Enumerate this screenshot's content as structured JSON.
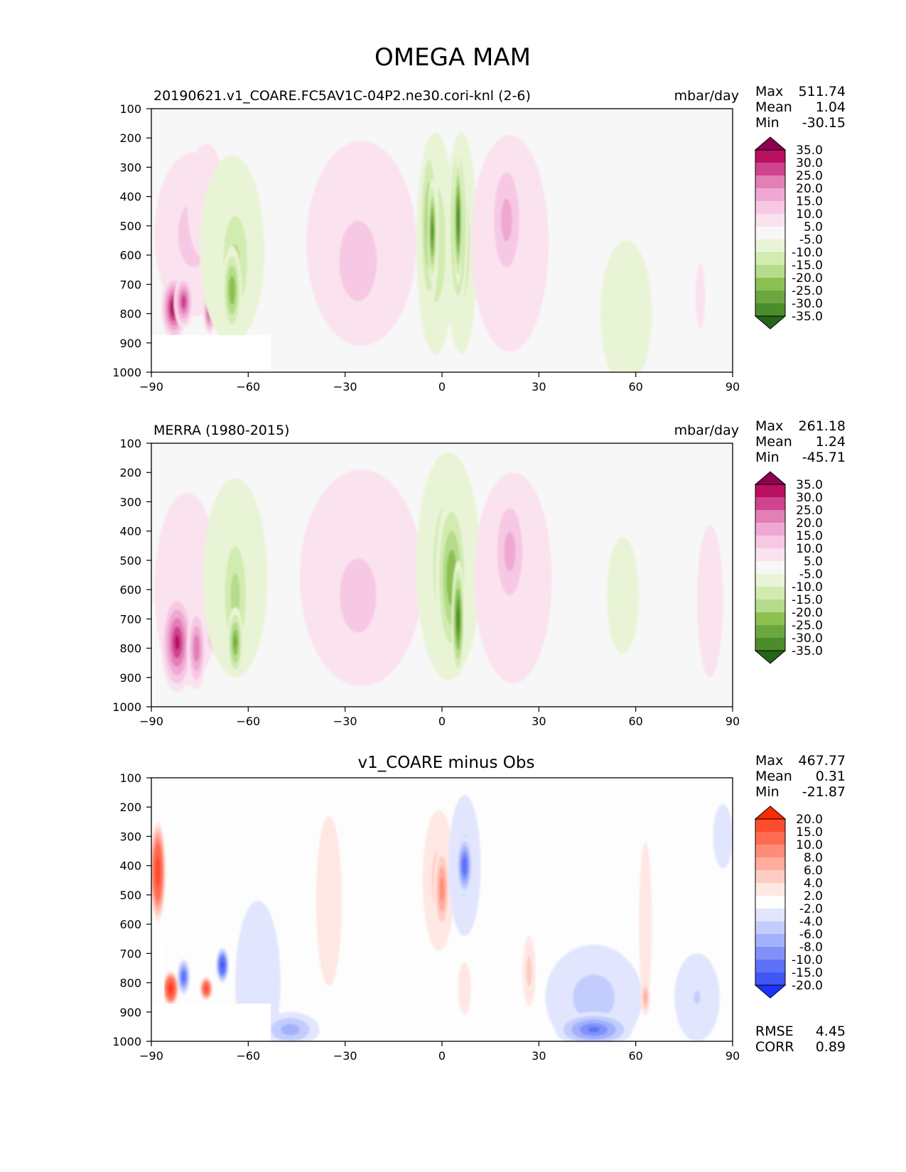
{
  "figure": {
    "title": "OMEGA MAM"
  },
  "chart_data": [
    {
      "type": "contour",
      "title": "20190621.v1_COARE.FC5AV1C-04P2.ne30.cori-knl (2-6)",
      "units": "mbar/day",
      "x_ticks": [
        "−90",
        "−60",
        "−30",
        "0",
        "30",
        "60",
        "90"
      ],
      "x_values": [
        -90,
        -60,
        -30,
        0,
        30,
        60,
        90
      ],
      "xlim": [
        -90,
        90
      ],
      "y_ticks": [
        "100",
        "200",
        "300",
        "400",
        "500",
        "600",
        "700",
        "800",
        "900",
        "1000"
      ],
      "y_values": [
        100,
        200,
        300,
        400,
        500,
        600,
        700,
        800,
        900,
        1000
      ],
      "ylim": [
        1000,
        100
      ],
      "stats": [
        {
          "label": "Max",
          "value": "511.74"
        },
        {
          "label": "Mean",
          "value": "1.04"
        },
        {
          "label": "Min",
          "value": "-30.15"
        }
      ],
      "colorbar": {
        "labels": [
          "35.0",
          "30.0",
          "25.0",
          "20.0",
          "15.0",
          "10.0",
          "5.0",
          "-5.0",
          "-10.0",
          "-15.0",
          "-20.0",
          "-25.0",
          "-30.0",
          "-35.0"
        ],
        "colors": [
          "#8e0152",
          "#b9105f",
          "#d0438f",
          "#e27fb5",
          "#efa8d2",
          "#f7c8e3",
          "#fae2ef",
          "#f7f7f7",
          "#e9f4d7",
          "#d2ebb0",
          "#b4dc8a",
          "#8cc151",
          "#6ba73e",
          "#4b8d2b",
          "#266419"
        ]
      },
      "blobs": [
        {
          "x": -77,
          "y": 530,
          "rx": 12,
          "ry": 280,
          "v": 12
        },
        {
          "x": -73,
          "y": 420,
          "rx": 6,
          "ry": 200,
          "v": 6
        },
        {
          "x": -83,
          "y": 780,
          "rx": 4,
          "ry": 110,
          "v": 34
        },
        {
          "x": -80,
          "y": 760,
          "rx": 3,
          "ry": 90,
          "v": 28
        },
        {
          "x": -72,
          "y": 790,
          "rx": 2,
          "ry": 80,
          "v": 30
        },
        {
          "x": -65,
          "y": 580,
          "rx": 10,
          "ry": 320,
          "v": -9
        },
        {
          "x": -64,
          "y": 620,
          "rx": 6,
          "ry": 250,
          "v": -16
        },
        {
          "x": -65,
          "y": 720,
          "rx": 3,
          "ry": 150,
          "v": -24
        },
        {
          "x": -25,
          "y": 560,
          "rx": 17,
          "ry": 350,
          "v": 9
        },
        {
          "x": -26,
          "y": 620,
          "rx": 11,
          "ry": 260,
          "v": 14
        },
        {
          "x": -2,
          "y": 560,
          "rx": 6,
          "ry": 380,
          "v": -14
        },
        {
          "x": 6,
          "y": 560,
          "rx": 5,
          "ry": 380,
          "v": -14
        },
        {
          "x": -4,
          "y": 500,
          "rx": 3,
          "ry": 300,
          "v": -22
        },
        {
          "x": 5,
          "y": 500,
          "rx": 3,
          "ry": 300,
          "v": -26
        },
        {
          "x": -3,
          "y": 520,
          "rx": 1.5,
          "ry": 180,
          "v": -30
        },
        {
          "x": 5,
          "y": 480,
          "rx": 1.5,
          "ry": 220,
          "v": -33
        },
        {
          "x": 21,
          "y": 560,
          "rx": 12,
          "ry": 370,
          "v": 10
        },
        {
          "x": 20,
          "y": 480,
          "rx": 6,
          "ry": 250,
          "v": 17
        },
        {
          "x": 57,
          "y": 800,
          "rx": 8,
          "ry": 250,
          "v": -8
        },
        {
          "x": 80,
          "y": 740,
          "rx": 1.5,
          "ry": 110,
          "v": 8
        }
      ]
    },
    {
      "type": "contour",
      "title": "MERRA (1980-2015)",
      "units": "mbar/day",
      "x_ticks": [
        "−90",
        "−60",
        "−30",
        "0",
        "30",
        "60",
        "90"
      ],
      "x_values": [
        -90,
        -60,
        -30,
        0,
        30,
        60,
        90
      ],
      "xlim": [
        -90,
        90
      ],
      "y_ticks": [
        "100",
        "200",
        "300",
        "400",
        "500",
        "600",
        "700",
        "800",
        "900",
        "1000"
      ],
      "y_values": [
        100,
        200,
        300,
        400,
        500,
        600,
        700,
        800,
        900,
        1000
      ],
      "ylim": [
        1000,
        100
      ],
      "stats": [
        {
          "label": "Max",
          "value": "261.18"
        },
        {
          "label": "Mean",
          "value": "1.24"
        },
        {
          "label": "Min",
          "value": "-45.71"
        }
      ],
      "colorbar": {
        "labels": [
          "35.0",
          "30.0",
          "25.0",
          "20.0",
          "15.0",
          "10.0",
          "5.0",
          "-5.0",
          "-10.0",
          "-15.0",
          "-20.0",
          "-25.0",
          "-30.0",
          "-35.0"
        ],
        "colors": [
          "#8e0152",
          "#b9105f",
          "#d0438f",
          "#e27fb5",
          "#efa8d2",
          "#f7c8e3",
          "#fae2ef",
          "#f7f7f7",
          "#e9f4d7",
          "#d2ebb0",
          "#b4dc8a",
          "#8cc151",
          "#6ba73e",
          "#4b8d2b",
          "#266419"
        ]
      },
      "blobs": [
        {
          "x": -79,
          "y": 600,
          "rx": 10,
          "ry": 330,
          "v": 8
        },
        {
          "x": -82,
          "y": 780,
          "rx": 5,
          "ry": 170,
          "v": 30
        },
        {
          "x": -76,
          "y": 800,
          "rx": 3,
          "ry": 140,
          "v": 24
        },
        {
          "x": -71,
          "y": 760,
          "rx": 2,
          "ry": 60,
          "v": 22
        },
        {
          "x": -64,
          "y": 560,
          "rx": 10,
          "ry": 340,
          "v": -9
        },
        {
          "x": -64,
          "y": 620,
          "rx": 5,
          "ry": 260,
          "v": -17
        },
        {
          "x": -64,
          "y": 780,
          "rx": 2.5,
          "ry": 120,
          "v": -25
        },
        {
          "x": -25,
          "y": 560,
          "rx": 19,
          "ry": 370,
          "v": 9
        },
        {
          "x": -26,
          "y": 620,
          "rx": 12,
          "ry": 270,
          "v": 13
        },
        {
          "x": 2,
          "y": 520,
          "rx": 10,
          "ry": 390,
          "v": -11
        },
        {
          "x": 2,
          "y": 520,
          "rx": 7,
          "ry": 330,
          "v": -18
        },
        {
          "x": 3,
          "y": 560,
          "rx": 5,
          "ry": 290,
          "v": -24
        },
        {
          "x": 5,
          "y": 700,
          "rx": 2,
          "ry": 200,
          "v": -32
        },
        {
          "x": 22,
          "y": 560,
          "rx": 12,
          "ry": 360,
          "v": 10
        },
        {
          "x": 21,
          "y": 470,
          "rx": 6,
          "ry": 230,
          "v": 17
        },
        {
          "x": 56,
          "y": 620,
          "rx": 5,
          "ry": 200,
          "v": -7
        },
        {
          "x": 83,
          "y": 640,
          "rx": 4,
          "ry": 260,
          "v": 7
        }
      ]
    },
    {
      "type": "contour",
      "title": "v1_COARE minus Obs",
      "units": "",
      "x_ticks": [
        "−90",
        "−60",
        "−30",
        "0",
        "30",
        "60",
        "90"
      ],
      "x_values": [
        -90,
        -60,
        -30,
        0,
        30,
        60,
        90
      ],
      "xlim": [
        -90,
        90
      ],
      "y_ticks": [
        "100",
        "200",
        "300",
        "400",
        "500",
        "600",
        "700",
        "800",
        "900",
        "1000"
      ],
      "y_values": [
        100,
        200,
        300,
        400,
        500,
        600,
        700,
        800,
        900,
        1000
      ],
      "ylim": [
        1000,
        100
      ],
      "stats": [
        {
          "label": "Max",
          "value": "467.77"
        },
        {
          "label": "Mean",
          "value": "0.31"
        },
        {
          "label": "Min",
          "value": "-21.87"
        }
      ],
      "extra_stats": [
        {
          "label": "RMSE",
          "value": "4.45"
        },
        {
          "label": "CORR",
          "value": "0.89"
        }
      ],
      "colorbar": {
        "labels": [
          "20.0",
          "15.0",
          "10.0",
          "8.0",
          "6.0",
          "4.0",
          "2.0",
          "-2.0",
          "-4.0",
          "-6.0",
          "-8.0",
          "-10.0",
          "-15.0",
          "-20.0"
        ],
        "colors": [
          "#ff2a00",
          "#ff4c2e",
          "#ff6a52",
          "#ff8c78",
          "#ffac9d",
          "#ffccc2",
          "#ffe8e3",
          "#fdfdfd",
          "#e1e6fe",
          "#c3cdfd",
          "#a3b1fc",
          "#8092fa",
          "#5d72f7",
          "#3f57f5",
          "#1a33ff"
        ]
      },
      "blobs": [
        {
          "x": -88,
          "y": 420,
          "rx": 2.5,
          "ry": 170,
          "v": 18
        },
        {
          "x": -84,
          "y": 820,
          "rx": 2.5,
          "ry": 60,
          "v": 20
        },
        {
          "x": -80,
          "y": 780,
          "rx": 2,
          "ry": 60,
          "v": -12
        },
        {
          "x": -73,
          "y": 820,
          "rx": 2,
          "ry": 40,
          "v": 17
        },
        {
          "x": -68,
          "y": 740,
          "rx": 2,
          "ry": 60,
          "v": -16
        },
        {
          "x": -57,
          "y": 800,
          "rx": 7,
          "ry": 280,
          "v": -3
        },
        {
          "x": -47,
          "y": 960,
          "rx": 9,
          "ry": 60,
          "v": -7
        },
        {
          "x": -35,
          "y": 520,
          "rx": 4,
          "ry": 290,
          "v": 3
        },
        {
          "x": -1,
          "y": 450,
          "rx": 5,
          "ry": 240,
          "v": 5
        },
        {
          "x": 0,
          "y": 480,
          "rx": 2.5,
          "ry": 150,
          "v": 9
        },
        {
          "x": 7,
          "y": 400,
          "rx": 5,
          "ry": 240,
          "v": -5
        },
        {
          "x": 7,
          "y": 400,
          "rx": 2.5,
          "ry": 100,
          "v": -12
        },
        {
          "x": 7,
          "y": 820,
          "rx": 2,
          "ry": 90,
          "v": 3
        },
        {
          "x": 27,
          "y": 760,
          "rx": 2,
          "ry": 120,
          "v": 5
        },
        {
          "x": 47,
          "y": 850,
          "rx": 15,
          "ry": 180,
          "v": -5
        },
        {
          "x": 47,
          "y": 960,
          "rx": 12,
          "ry": 60,
          "v": -10
        },
        {
          "x": 63,
          "y": 600,
          "rx": 2,
          "ry": 280,
          "v": 3
        },
        {
          "x": 63,
          "y": 850,
          "rx": 1.5,
          "ry": 60,
          "v": 7
        },
        {
          "x": 79,
          "y": 850,
          "rx": 7,
          "ry": 150,
          "v": -4
        },
        {
          "x": 87,
          "y": 300,
          "rx": 3,
          "ry": 110,
          "v": -3
        }
      ]
    }
  ]
}
